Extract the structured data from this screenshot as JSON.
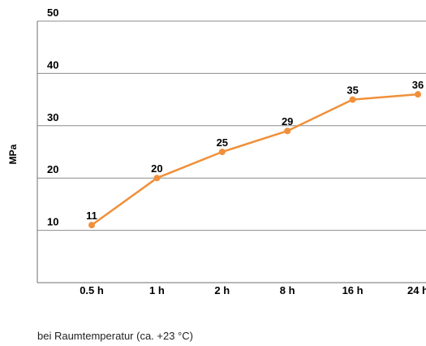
{
  "chart_data": {
    "type": "line",
    "categories": [
      "0.5 h",
      "1 h",
      "2 h",
      "8 h",
      "16 h",
      "24 h"
    ],
    "series": [
      {
        "values": [
          11,
          20,
          25,
          29,
          35,
          36
        ],
        "color": "#f0903a"
      }
    ],
    "ylabel": "MPa",
    "ylim": [
      0,
      50
    ],
    "yticks": [
      10,
      20,
      30,
      40,
      50
    ],
    "grid": true,
    "note": "bei Raumtemperatur (ca. +23 °C)"
  }
}
